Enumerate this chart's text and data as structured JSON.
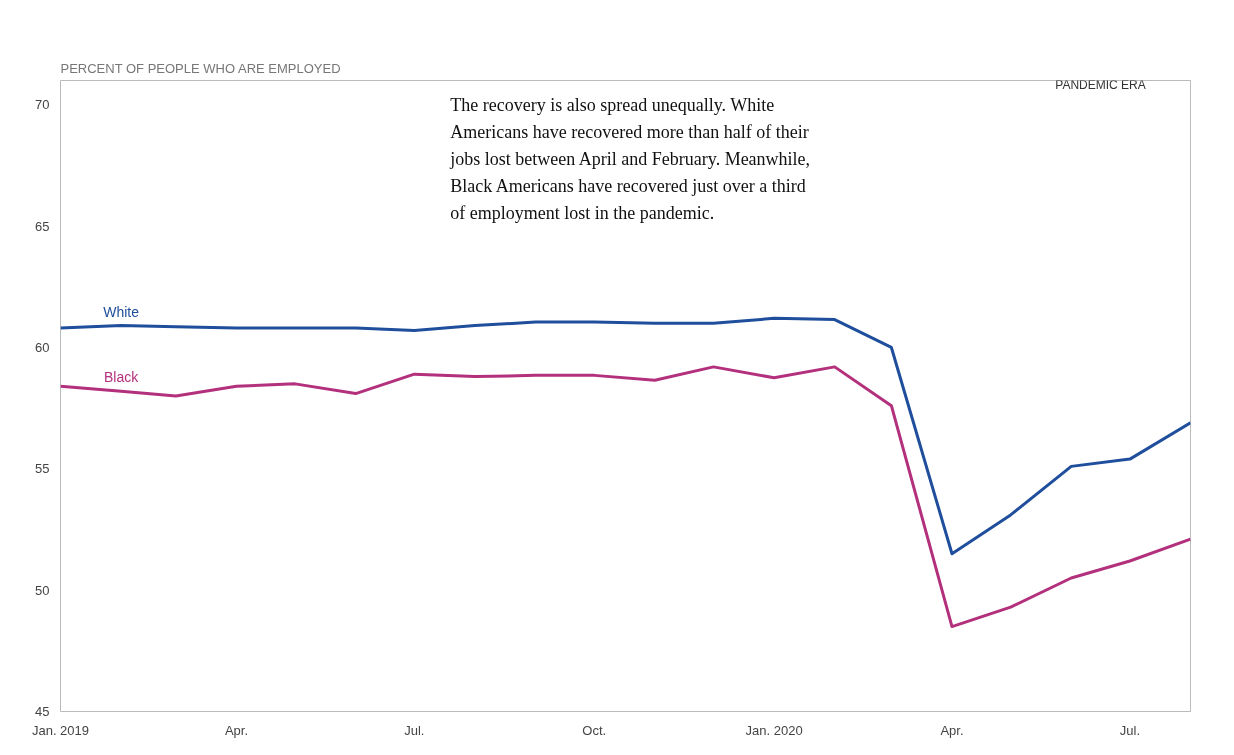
{
  "chart_data": {
    "type": "line",
    "title": "PERCENT OF PEOPLE WHO ARE EMPLOYED",
    "x": [
      "2019-01",
      "2019-02",
      "2019-03",
      "2019-04",
      "2019-05",
      "2019-06",
      "2019-07",
      "2019-08",
      "2019-09",
      "2019-10",
      "2019-11",
      "2019-12",
      "2020-01",
      "2020-02",
      "2020-03",
      "2020-04",
      "2020-05",
      "2020-06",
      "2020-07",
      "2020-08"
    ],
    "series": [
      {
        "name": "White",
        "color": "#1f4e9c",
        "values": [
          60.8,
          60.9,
          60.85,
          60.8,
          60.8,
          60.8,
          60.7,
          60.9,
          61.05,
          61.05,
          61.0,
          61.0,
          61.2,
          61.15,
          60.0,
          51.5,
          53.1,
          55.1,
          55.4,
          56.9
        ]
      },
      {
        "name": "Black",
        "color": "#b3307c",
        "values": [
          58.4,
          58.2,
          58.0,
          58.4,
          58.5,
          58.1,
          58.9,
          58.8,
          58.85,
          58.85,
          58.65,
          59.2,
          58.75,
          59.2,
          57.6,
          48.5,
          49.3,
          50.5,
          51.2,
          52.1
        ]
      }
    ],
    "xlim": [
      "2019-01",
      "2020-08"
    ],
    "xticks": [
      {
        "value": "2019-01",
        "label": "Jan. 2019"
      },
      {
        "value": "2019-04",
        "label": "Apr."
      },
      {
        "value": "2019-07",
        "label": "Jul."
      },
      {
        "value": "2019-10",
        "label": "Oct."
      },
      {
        "value": "2020-01",
        "label": "Jan. 2020"
      },
      {
        "value": "2020-04",
        "label": "Apr."
      },
      {
        "value": "2020-07",
        "label": "Jul."
      }
    ],
    "ylim": [
      45,
      71
    ],
    "yticks": [
      45,
      50,
      55,
      60,
      65,
      70
    ],
    "grid": false,
    "legend": false,
    "marker": "none",
    "line_style": "solid",
    "annotations": [
      "The recovery is also spread unequally. White Americans have recovered more than half of their jobs lost between April and February. Meanwhile, Black Americans have recovered just over a third of employment lost in the pandemic.",
      "PANDEMIC ERA"
    ]
  }
}
